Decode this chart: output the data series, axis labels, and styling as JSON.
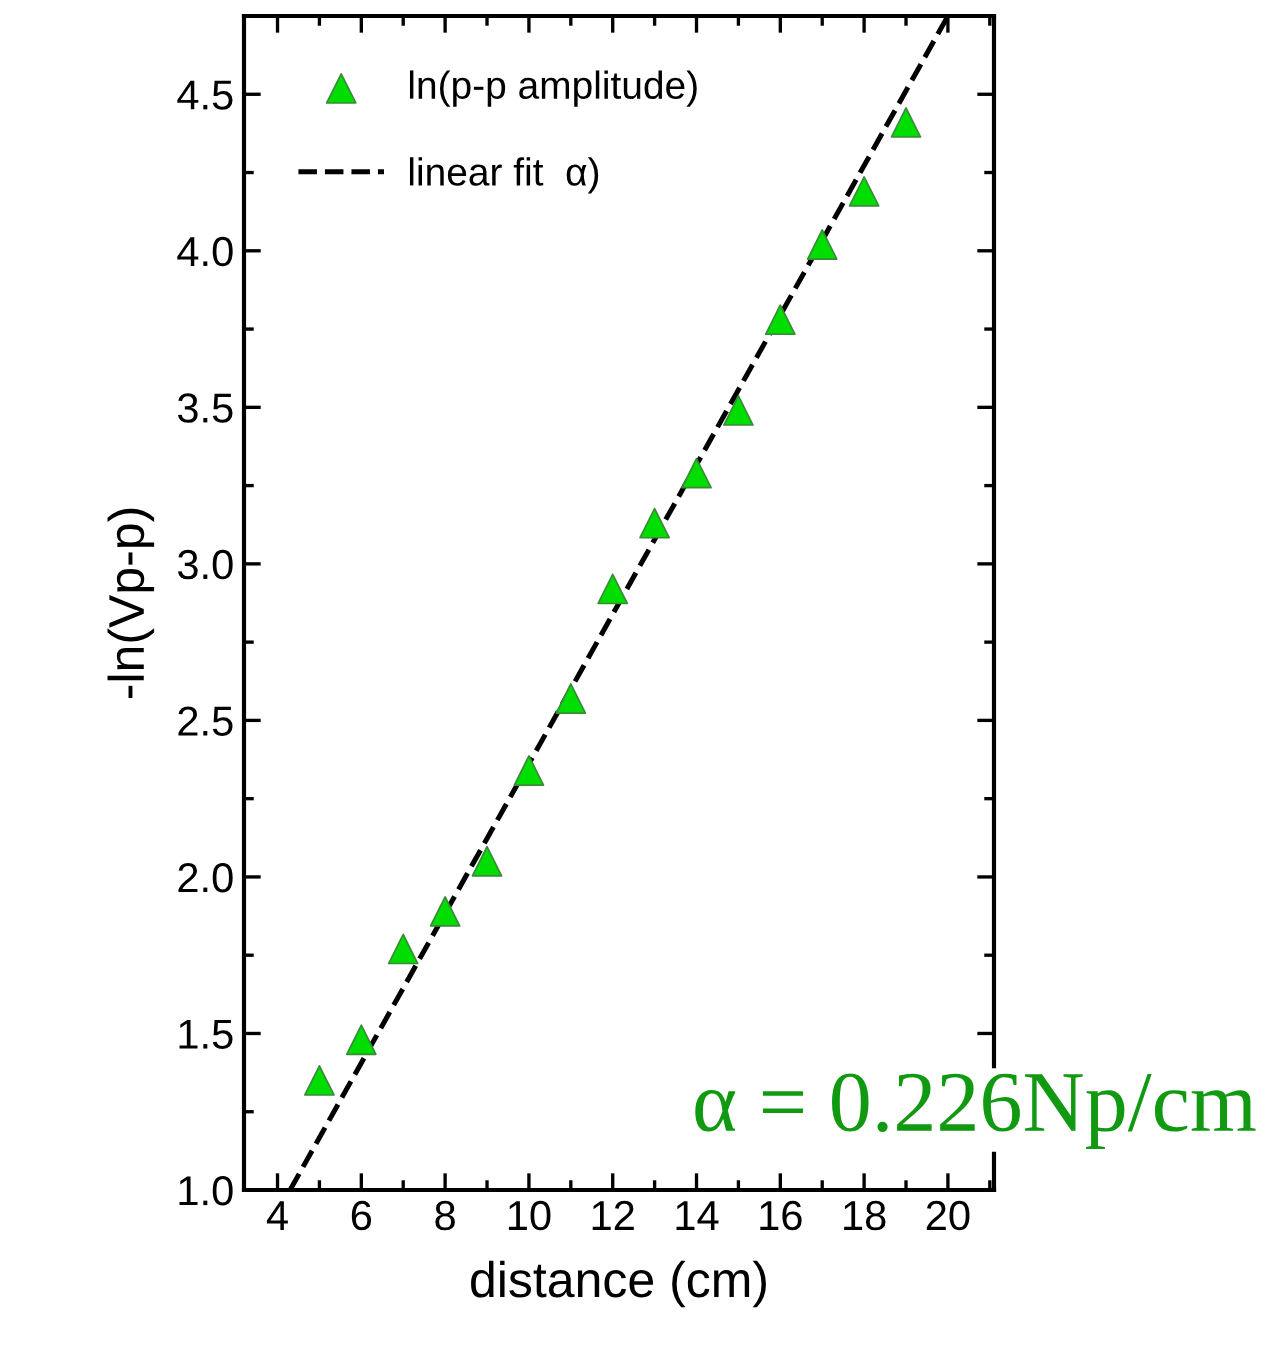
{
  "chart_data": {
    "type": "scatter",
    "xlabel": "distance (cm)",
    "ylabel": "-ln(Vp-p)",
    "series": [
      {
        "name": "ln(p-p amplitude)",
        "color": "#00dd00",
        "marker": "triangle",
        "x": [
          5,
          6,
          7,
          8,
          9,
          10,
          11,
          12,
          13,
          14,
          15,
          16,
          17,
          18,
          19
        ],
        "values": [
          1.35,
          1.48,
          1.77,
          1.89,
          2.05,
          2.34,
          2.57,
          2.92,
          3.13,
          3.29,
          3.49,
          3.78,
          4.02,
          4.19,
          4.41
        ]
      },
      {
        "name": "linear fit  α)",
        "type": "line",
        "color": "#000000",
        "line_style": "dashed",
        "marker": "none",
        "x": [
          4.3,
          20.0
        ],
        "values": [
          1.0,
          4.75
        ]
      }
    ],
    "annotations": [
      "α = 0.226Np/cm"
    ],
    "xlim": [
      3.2,
      21.1
    ],
    "xticks": [
      4,
      6,
      8,
      10,
      12,
      14,
      16,
      18,
      20
    ],
    "ylim": [
      1.0,
      4.75
    ],
    "yticks": [
      {
        "value": 1.0,
        "label": "1.0"
      },
      {
        "value": 1.5,
        "label": "1.5"
      },
      {
        "value": 2.0,
        "label": "2.0"
      },
      {
        "value": 2.5,
        "label": "2.5"
      },
      {
        "value": 3.0,
        "label": "3.0"
      },
      {
        "value": 3.5,
        "label": "3.5"
      },
      {
        "value": 4.0,
        "label": "4.0"
      },
      {
        "value": 4.5,
        "label": "4.5"
      }
    ],
    "grid": false,
    "legend": "top left"
  }
}
